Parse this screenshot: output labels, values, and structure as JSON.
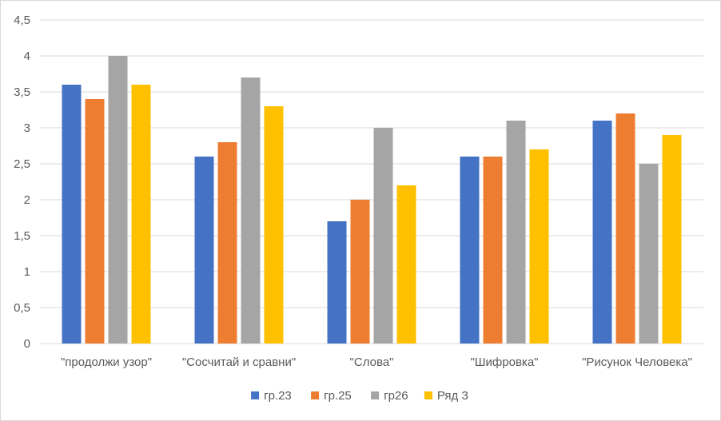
{
  "chart_data": {
    "type": "bar",
    "categories": [
      "\"продолжи узор\"",
      "\"Сосчитай и сравни\"",
      "\"Слова\"",
      "\"Шифровка\"",
      "\"Рисунок Человека\""
    ],
    "series": [
      {
        "name": "гр.23",
        "color": "#4472C4",
        "values": [
          3.6,
          2.6,
          1.7,
          2.6,
          3.1
        ]
      },
      {
        "name": "гр.25",
        "color": "#ED7D31",
        "values": [
          3.4,
          2.8,
          2.0,
          2.6,
          3.2
        ]
      },
      {
        "name": "гр26",
        "color": "#A5A5A5",
        "values": [
          4.0,
          3.7,
          3.0,
          3.1,
          2.5
        ]
      },
      {
        "name": "Ряд 3",
        "color": "#FFC000",
        "values": [
          3.6,
          3.3,
          2.2,
          2.7,
          2.9
        ]
      }
    ],
    "yticks": [
      "0",
      "0,5",
      "1",
      "1,5",
      "2",
      "2,5",
      "3",
      "3,5",
      "4",
      "4,5"
    ],
    "ylim": [
      0,
      4.5
    ],
    "grid": true,
    "grid_color": "#d9d9d9",
    "legend_position": "bottom",
    "title": "",
    "xlabel": "",
    "ylabel": ""
  }
}
